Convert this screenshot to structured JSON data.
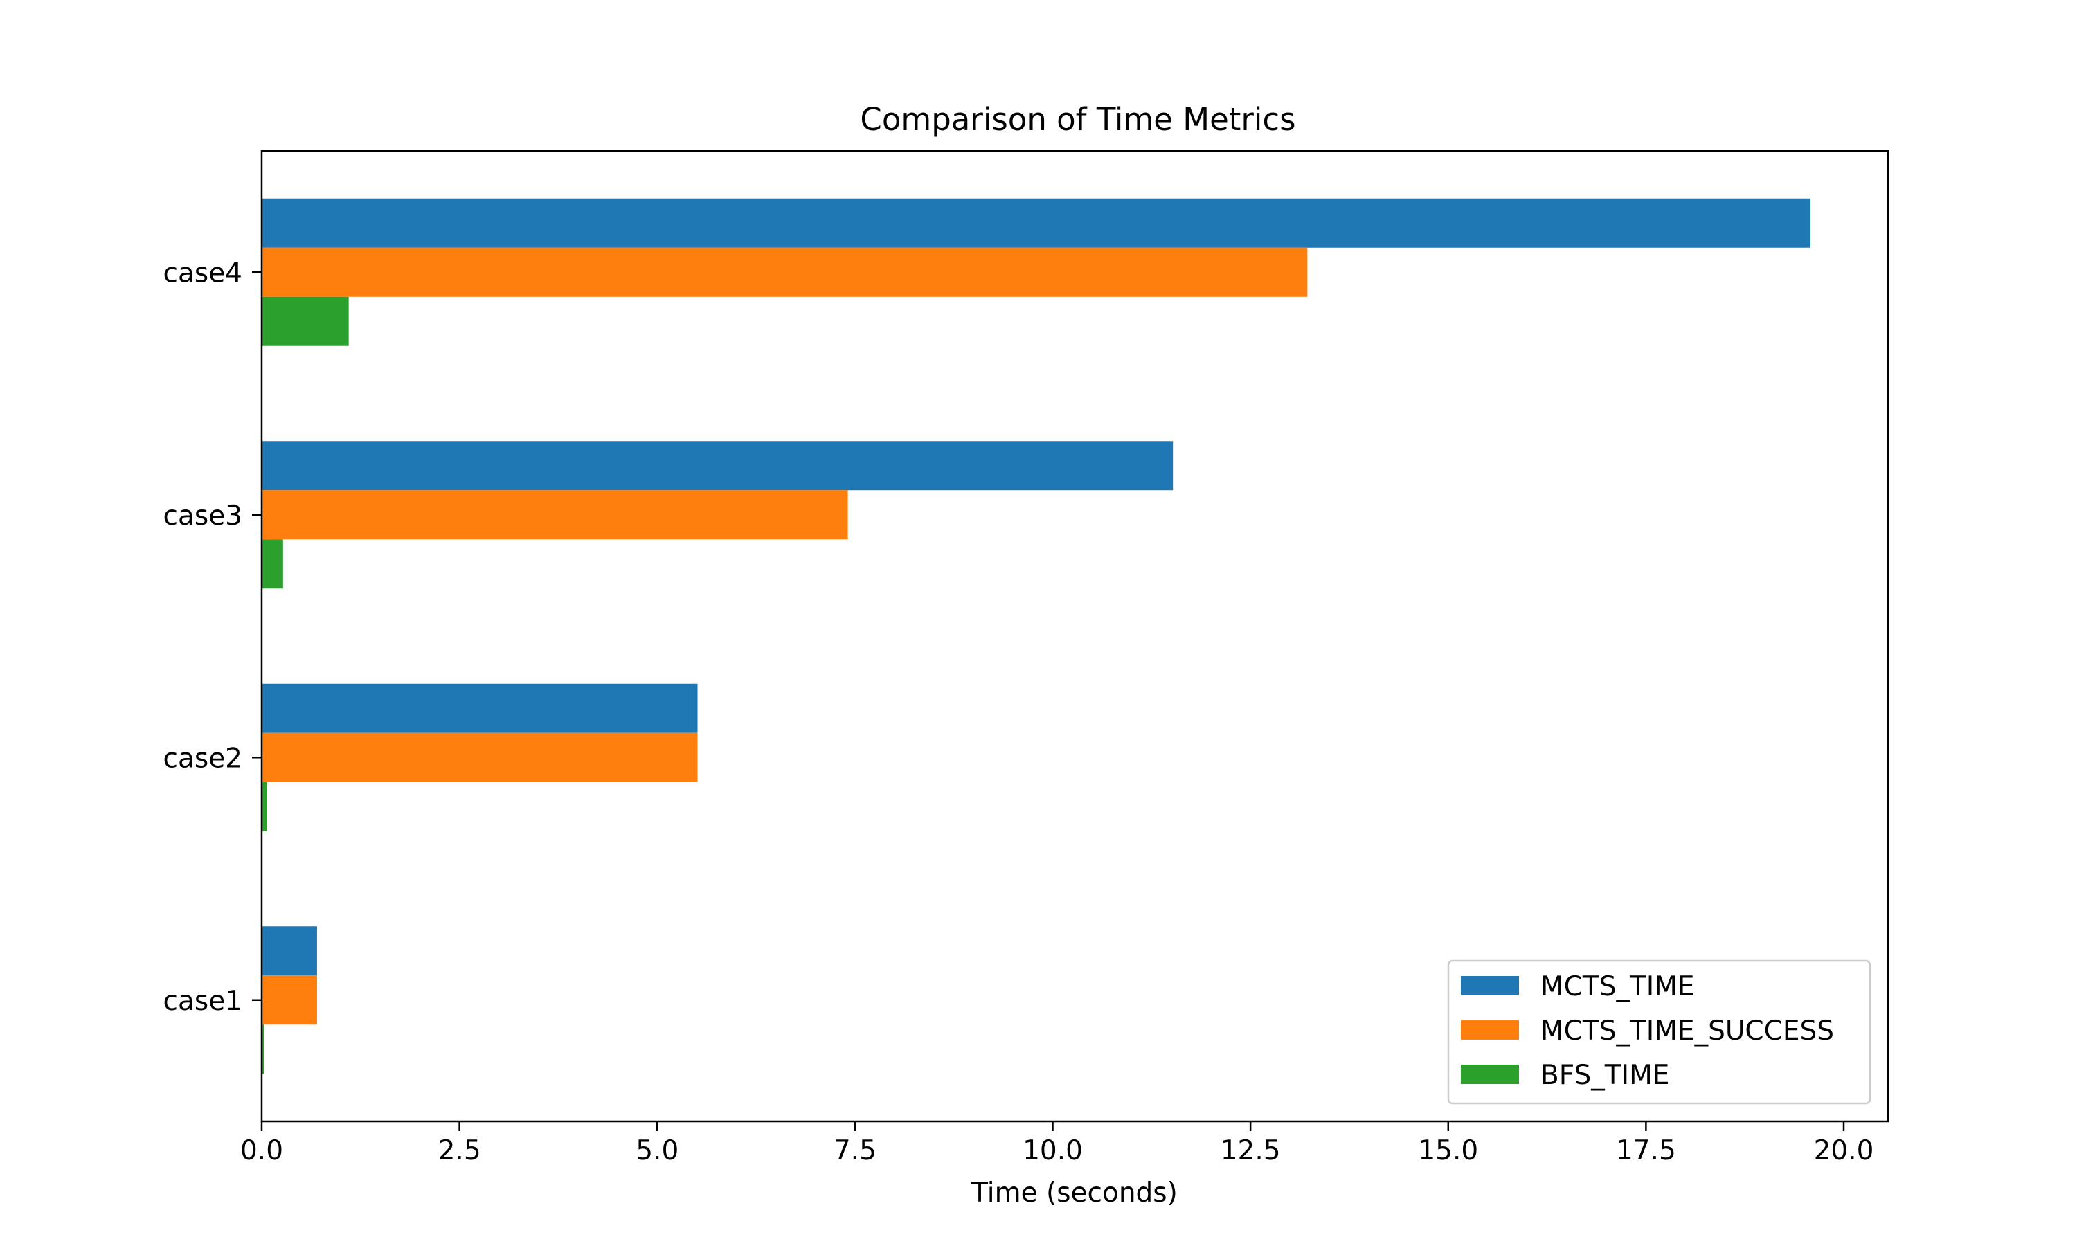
{
  "chart_data": {
    "type": "bar",
    "orientation": "horizontal",
    "title": "Comparison of Time Metrics",
    "xlabel": "Time (seconds)",
    "ylabel": "",
    "categories": [
      "case1",
      "case2",
      "case3",
      "case4"
    ],
    "series": [
      {
        "name": "MCTS_TIME",
        "color": "#1f77b4",
        "values": [
          0.7,
          5.51,
          11.52,
          19.58
        ]
      },
      {
        "name": "MCTS_TIME_SUCCESS",
        "color": "#ff7f0e",
        "values": [
          0.7,
          5.51,
          7.41,
          13.22
        ]
      },
      {
        "name": "BFS_TIME",
        "color": "#2ca02c",
        "values": [
          0.03,
          0.07,
          0.27,
          1.1
        ]
      }
    ],
    "xlim": [
      0,
      20.56
    ],
    "xticks": [
      0.0,
      2.5,
      5.0,
      7.5,
      10.0,
      12.5,
      15.0,
      17.5,
      20.0
    ],
    "xtick_labels": [
      "0.0",
      "2.5",
      "5.0",
      "7.5",
      "10.0",
      "12.5",
      "15.0",
      "17.5",
      "20.0"
    ],
    "grid": false,
    "legend_position": "lower-right"
  }
}
